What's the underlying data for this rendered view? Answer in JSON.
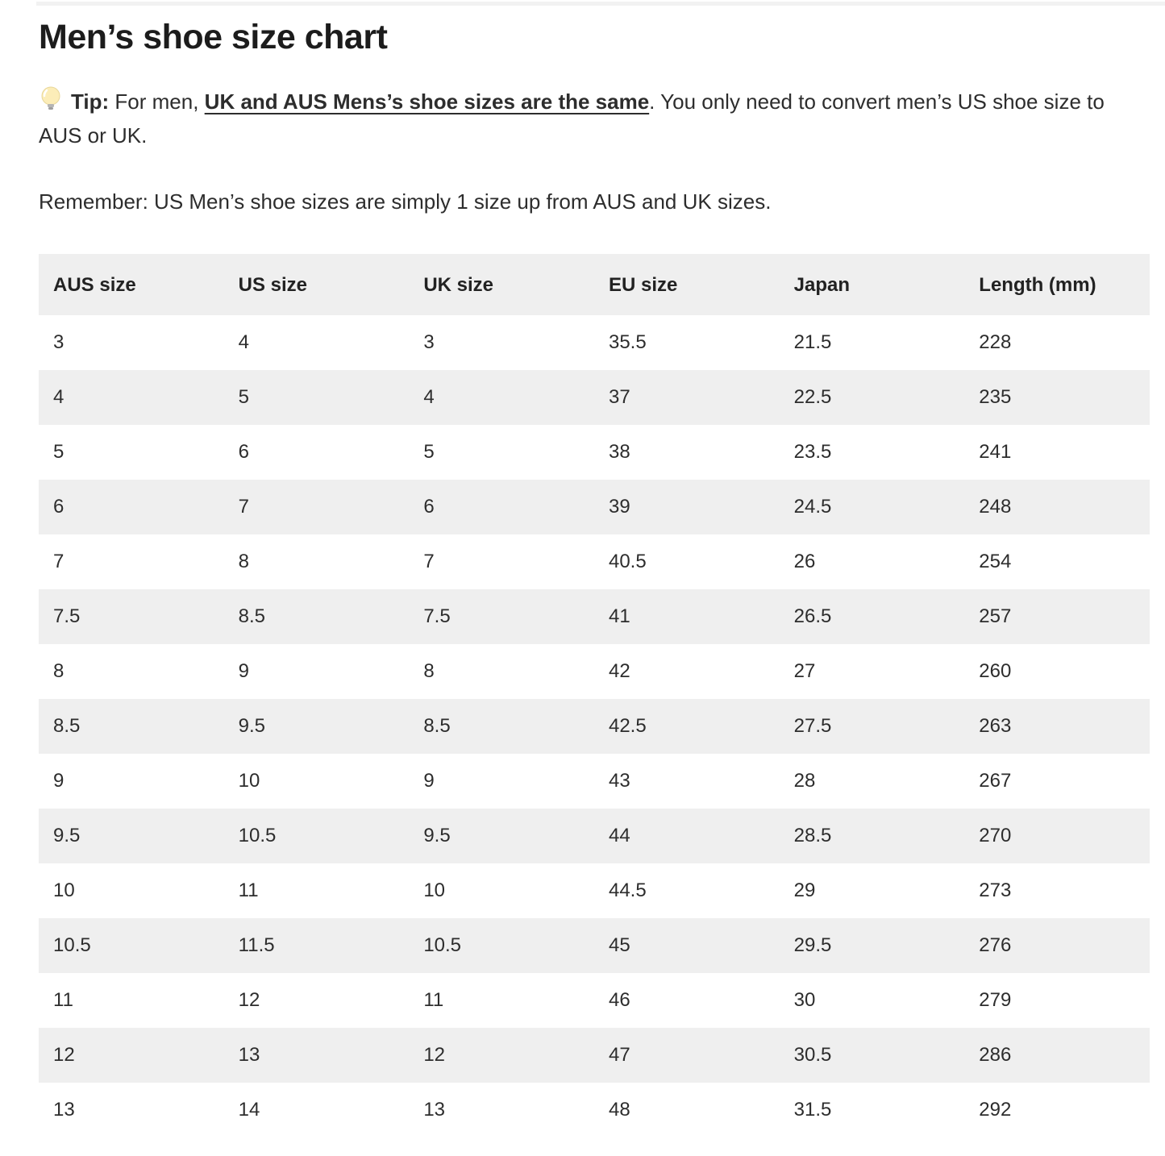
{
  "page": {
    "title": "Men’s shoe size chart",
    "tip": {
      "icon": "lightbulb-icon",
      "label": "Tip:",
      "text_before": " For men, ",
      "underlined_link": "UK and AUS Mens’s shoe sizes are the same",
      "text_after": ". You only need to convert men’s US shoe size to AUS or UK."
    },
    "remember": "Remember: US Men’s shoe sizes are simply 1 size up from AUS and UK sizes."
  },
  "table": {
    "headers": [
      "AUS size",
      "US size",
      "UK size",
      "EU size",
      "Japan",
      "Length (mm)"
    ],
    "rows": [
      [
        "3",
        "4",
        "3",
        "35.5",
        "21.5",
        "228"
      ],
      [
        "4",
        "5",
        "4",
        "37",
        "22.5",
        "235"
      ],
      [
        "5",
        "6",
        "5",
        "38",
        "23.5",
        "241"
      ],
      [
        "6",
        "7",
        "6",
        "39",
        "24.5",
        "248"
      ],
      [
        "7",
        "8",
        "7",
        "40.5",
        "26",
        "254"
      ],
      [
        "7.5",
        "8.5",
        "7.5",
        "41",
        "26.5",
        "257"
      ],
      [
        "8",
        "9",
        "8",
        "42",
        "27",
        "260"
      ],
      [
        "8.5",
        "9.5",
        "8.5",
        "42.5",
        "27.5",
        "263"
      ],
      [
        "9",
        "10",
        "9",
        "43",
        "28",
        "267"
      ],
      [
        "9.5",
        "10.5",
        "9.5",
        "44",
        "28.5",
        "270"
      ],
      [
        "10",
        "11",
        "10",
        "44.5",
        "29",
        "273"
      ],
      [
        "10.5",
        "11.5",
        "10.5",
        "45",
        "29.5",
        "276"
      ],
      [
        "11",
        "12",
        "11",
        "46",
        "30",
        "279"
      ],
      [
        "12",
        "13",
        "12",
        "47",
        "30.5",
        "286"
      ],
      [
        "13",
        "14",
        "13",
        "48",
        "31.5",
        "292"
      ]
    ]
  },
  "colors": {
    "row_stripe": "#efefef",
    "body_text": "#2d2d2d",
    "heading_text": "#1c1c1c",
    "bulb_yellow": "#fcedb8",
    "bulb_base_gray": "#9e9e9e"
  }
}
